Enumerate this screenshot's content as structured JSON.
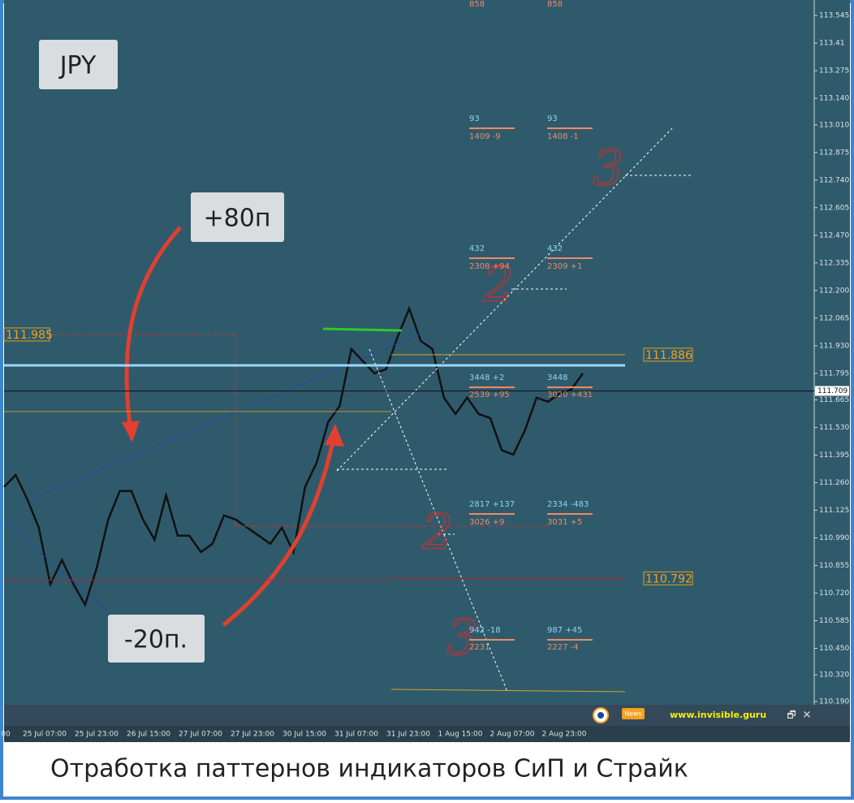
{
  "chart_data": {
    "type": "line",
    "title": "JPY",
    "ylim": [
      110.174,
      113.601
    ],
    "yticks": [
      113.545,
      113.41,
      113.275,
      {
        "value": 113.14,
        "label": "113.140"
      },
      {
        "value": 113.01,
        "label": "113.010"
      },
      112.875,
      {
        "value": 112.74,
        "label": "112.740"
      },
      112.605,
      {
        "value": 112.47,
        "label": "112.470"
      },
      112.335,
      {
        "value": 112.2,
        "label": "112.200"
      },
      112.065,
      {
        "value": 111.93,
        "label": "111.930"
      },
      111.795,
      111.665,
      {
        "value": 111.53,
        "label": "111.530"
      },
      111.395,
      {
        "value": 111.26,
        "label": "111.260"
      },
      111.125,
      {
        "value": 110.99,
        "label": "110.990"
      },
      110.855,
      {
        "value": 110.72,
        "label": "110.720"
      },
      110.585,
      {
        "value": 110.45,
        "label": "110.450"
      },
      {
        "value": 110.32,
        "label": "110.320"
      },
      {
        "value": 110.19,
        "label": "110.190"
      }
    ],
    "time_labels": [
      "00",
      "25 Jul 07:00",
      "25 Jul 23:00",
      "26 Jul 15:00",
      "27 Jul 07:00",
      "27 Jul 23:00",
      "30 Jul 15:00",
      "31 Jul 07:00",
      "31 Jul 23:00",
      "1 Aug 15:00",
      "2 Aug 07:00",
      "2 Aug 23:00"
    ],
    "series": [
      {
        "color": "#111111",
        "values": [
          111.239,
          111.298,
          111.18,
          111.04,
          110.763,
          110.882,
          110.763,
          110.663,
          110.842,
          111.08,
          111.219,
          111.219,
          111.08,
          110.981,
          111.199,
          111.001,
          111.001,
          110.921,
          110.961,
          111.1,
          111.08,
          111.04,
          111.001,
          110.961,
          111.04,
          110.921,
          111.239,
          111.358,
          111.557,
          111.636,
          111.914,
          111.854,
          111.795,
          111.815,
          111.973,
          112.112,
          111.953,
          111.914,
          111.676,
          111.596,
          111.676,
          111.596,
          111.576,
          111.418,
          111.398,
          111.517,
          111.676,
          111.656,
          111.696,
          111.716,
          111.795
        ]
      }
    ],
    "current_price": 111.709,
    "levels": [
      {
        "value": 111.985,
        "label": "111.985",
        "color": "#c83030"
      },
      {
        "value": 111.886,
        "label": "111.886",
        "color": "#e0a020"
      },
      {
        "value": 110.792,
        "label": "110.792",
        "color": "#c02020"
      }
    ],
    "support_line": 111.834
  },
  "annotations": {
    "plus": "+80п",
    "minus": "-20п.",
    "caption": "Отработка паттернов индикаторов СиП и Страйк",
    "site": "www.invisible.guru",
    "news": "News",
    "wave_labels": [
      "3",
      "2",
      "2",
      "3"
    ],
    "stats": [
      "858",
      "858",
      "93",
      "1409 -9",
      "93",
      "1408 -1",
      "432",
      "2308 +94",
      "432",
      "2309 +1",
      "3448 +2",
      "2539 +95",
      "3448",
      "3020 +431",
      "2817 +137",
      "3026 +9",
      "2334 -483",
      "3031 +5",
      "942 -18",
      "2231",
      "987 +45",
      "2227 -4"
    ]
  }
}
